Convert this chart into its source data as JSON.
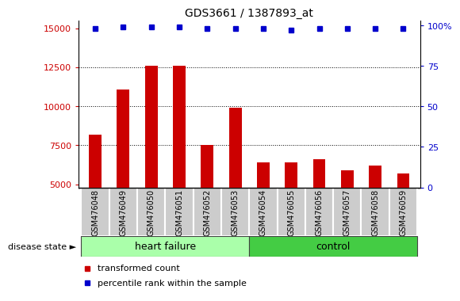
{
  "title": "GDS3661 / 1387893_at",
  "categories": [
    "GSM476048",
    "GSM476049",
    "GSM476050",
    "GSM476051",
    "GSM476052",
    "GSM476053",
    "GSM476054",
    "GSM476055",
    "GSM476056",
    "GSM476057",
    "GSM476058",
    "GSM476059"
  ],
  "bar_values": [
    8200,
    11100,
    12600,
    12600,
    7500,
    9900,
    6400,
    6400,
    6600,
    5900,
    6200,
    5700
  ],
  "percentile_values": [
    98,
    99,
    99,
    99,
    98,
    98,
    98,
    97,
    98,
    98,
    98,
    98
  ],
  "bar_color": "#cc0000",
  "percentile_color": "#0000cc",
  "ylim_left": [
    4800,
    15500
  ],
  "ylim_right": [
    0,
    103
  ],
  "yticks_left": [
    5000,
    7500,
    10000,
    12500,
    15000
  ],
  "yticks_right": [
    0,
    25,
    50,
    75,
    100
  ],
  "grid_values": [
    7500,
    10000,
    12500
  ],
  "heart_failure_count": 6,
  "control_count": 6,
  "heart_failure_color": "#aaffaa",
  "control_color": "#44cc44",
  "group_label": "disease state",
  "heart_failure_label": "heart failure",
  "control_label": "control",
  "legend_transformed": "transformed count",
  "legend_percentile": "percentile rank within the sample",
  "bar_width": 0.45,
  "cell_bg_color": "#cccccc",
  "cell_edge_color": "#ffffff"
}
